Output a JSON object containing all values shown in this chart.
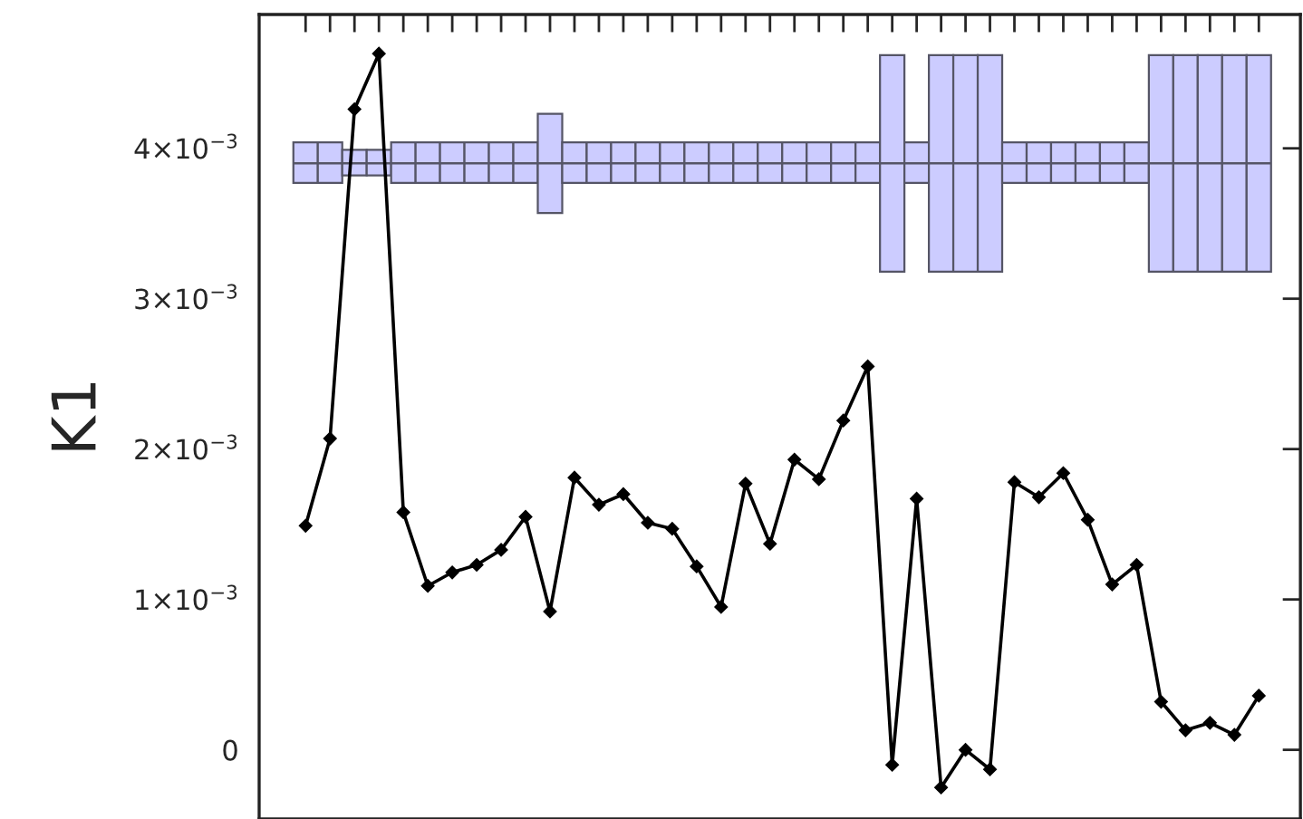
{
  "chart_data": {
    "type": "bar",
    "ylabel": "K1",
    "categories": [
      null,
      null,
      null,
      null,
      null,
      null,
      null,
      null,
      null,
      null,
      null,
      null,
      null,
      null,
      null,
      null,
      null,
      null,
      null,
      null,
      null,
      null,
      null,
      null,
      null,
      null,
      null,
      null,
      null,
      null,
      null,
      null,
      null,
      null,
      null,
      null,
      null,
      null,
      null,
      null
    ],
    "series": [
      {
        "color": "#ccccff",
        "base": [
          0.00377,
          0.00377,
          0.00382,
          0.00382,
          0.00377,
          0.00377,
          0.00377,
          0.00377,
          0.00377,
          0.00377,
          0.00357,
          0.00377,
          0.00377,
          0.00377,
          0.00377,
          0.00377,
          0.00377,
          0.00377,
          0.00377,
          0.00377,
          0.00377,
          0.00377,
          0.00377,
          0.00377,
          0.00318,
          0.00377,
          0.00318,
          0.00318,
          0.00318,
          0.00377,
          0.00377,
          0.00377,
          0.00377,
          0.00377,
          0.00377,
          0.00318,
          0.00318,
          0.00318,
          0.00318,
          0.00318
        ],
        "values": [
          0.00027,
          0.00027,
          0.00017,
          0.00017,
          0.00027,
          0.00027,
          0.00027,
          0.00027,
          0.00027,
          0.00027,
          0.00066,
          0.00027,
          0.00027,
          0.00027,
          0.00027,
          0.00027,
          0.00027,
          0.00027,
          0.00027,
          0.00027,
          0.00027,
          0.00027,
          0.00027,
          0.00027,
          0.00144,
          0.00027,
          0.00144,
          0.00144,
          0.00144,
          0.00027,
          0.00027,
          0.00027,
          0.00027,
          0.00027,
          0.00027,
          0.00144,
          0.00144,
          0.00144,
          0.00144,
          0.00144
        ]
      },
      {
        "type": "line",
        "color": "#000000",
        "values": [
          0.00149,
          0.00207,
          0.00426,
          0.00463,
          0.00158,
          0.00109,
          0.00118,
          0.00123,
          0.00133,
          0.00155,
          0.00092,
          0.00181,
          0.00163,
          0.0017,
          0.00151,
          0.00147,
          0.00122,
          0.00095,
          0.00177,
          0.00137,
          0.00193,
          0.0018,
          0.00219,
          0.00255,
          -0.0001,
          0.00167,
          -0.00025,
          0,
          -0.00013,
          0.00178,
          0.00168,
          0.00184,
          0.00153,
          0.0011,
          0.00123,
          0.00032,
          0.00013,
          0.00018,
          0.0001,
          0.00036
        ]
      }
    ],
    "ref_lines": [
      {
        "axis": "y",
        "value": 0.0039,
        "color": "#555566"
      }
    ],
    "marker": "diamond",
    "line_style": "solid",
    "grid": false,
    "legend": false,
    "ylim": [
      -0.00046,
      0.00489
    ],
    "yticks": [
      0,
      {
        "value": 0.001,
        "label": "1×10$^{−3}$"
      },
      {
        "value": 0.002,
        "label": "2×10$^{−3}$"
      },
      {
        "value": 0.003,
        "label": "3×10$^{−3}$"
      },
      {
        "value": 0.004,
        "label": "4×10$^{−3}$"
      }
    ]
  }
}
